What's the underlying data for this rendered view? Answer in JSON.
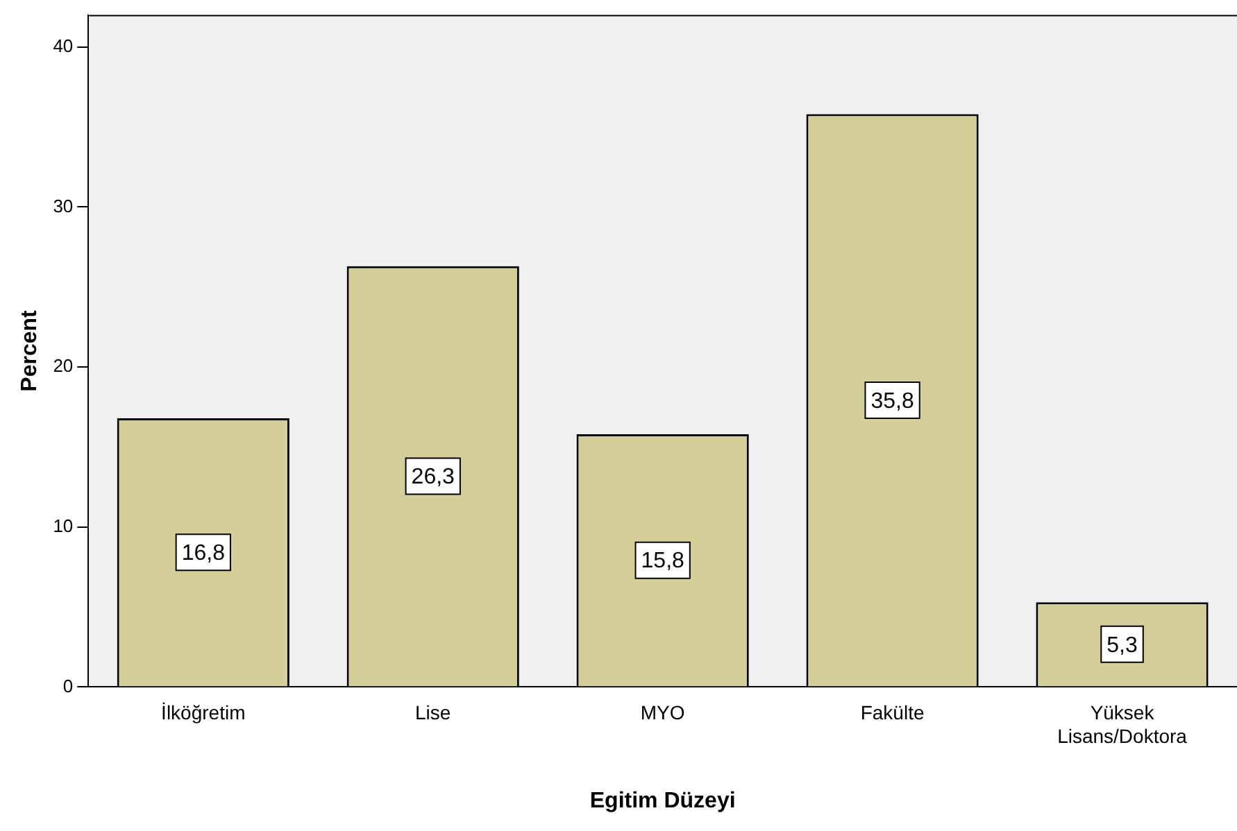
{
  "chart_data": {
    "type": "bar",
    "xlabel": "Egitim Düzeyi",
    "ylabel": "Percent",
    "categories": [
      "İlköğretim",
      "Lise",
      "MYO",
      "Fakülte",
      "Yüksek Lisans/Doktora"
    ],
    "values": [
      16.8,
      26.3,
      15.8,
      35.8,
      5.3
    ],
    "value_labels": [
      "16,8",
      "26,3",
      "15,8",
      "35,8",
      "5,3"
    ],
    "color": "#d3ce9a",
    "ylim": [
      0,
      42
    ],
    "yticks": [
      0,
      10,
      20,
      30,
      40
    ],
    "grid": false,
    "legend": false
  }
}
